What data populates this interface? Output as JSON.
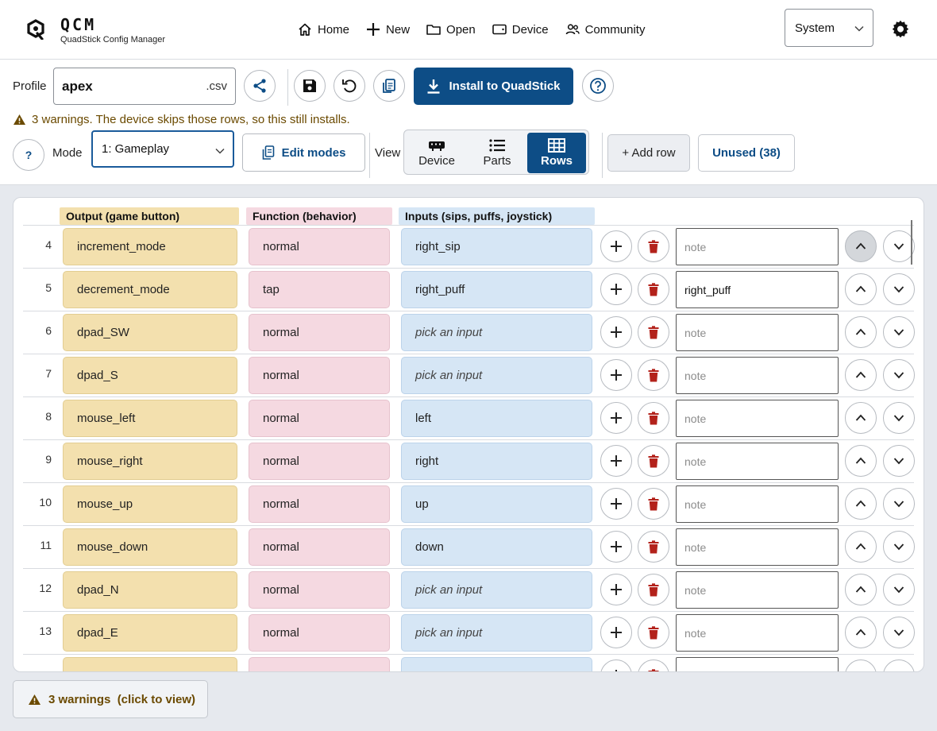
{
  "app": {
    "logo_icon": "quadstick-logo",
    "title": "QCM",
    "subtitle": "QuadStick Config Manager"
  },
  "nav": [
    {
      "label": "Home",
      "icon": "home-icon"
    },
    {
      "label": "New",
      "icon": "plus-icon"
    },
    {
      "label": "Open",
      "icon": "folder-icon"
    },
    {
      "label": "Device",
      "icon": "device-icon"
    },
    {
      "label": "Community",
      "icon": "people-icon"
    }
  ],
  "theme_select": {
    "value": "System"
  },
  "toolbar": {
    "profile_label": "Profile",
    "profile_name": "apex",
    "profile_ext": ".csv",
    "install_label": "Install to QuadStick",
    "warning_text": "3 warnings. The device skips those rows, so this still installs.",
    "help_label": "?",
    "mode_label": "Mode",
    "mode_value": "1: Gameplay",
    "edit_modes_label": "Edit modes",
    "view_label": "View",
    "view_options": [
      {
        "label": "Device",
        "active": false
      },
      {
        "label": "Parts",
        "active": false
      },
      {
        "label": "Rows",
        "active": true
      }
    ],
    "add_row_label": "+ Add row",
    "unused_label": "Unused (38)"
  },
  "table": {
    "headers": {
      "output": "Output (game button)",
      "function": "Function (behavior)",
      "inputs": "Inputs (sips, puffs, joystick)"
    },
    "note_placeholder": "note",
    "rows": [
      {
        "num": "4",
        "output": "increment_mode",
        "function": "normal",
        "input": "right_sip",
        "input_placeholder": false,
        "note": ""
      },
      {
        "num": "5",
        "output": "decrement_mode",
        "function": "tap",
        "input": "right_puff",
        "input_placeholder": false,
        "note": "right_puff"
      },
      {
        "num": "6",
        "output": "dpad_SW",
        "function": "normal",
        "input": "pick an input",
        "input_placeholder": true,
        "note": ""
      },
      {
        "num": "7",
        "output": "dpad_S",
        "function": "normal",
        "input": "pick an input",
        "input_placeholder": true,
        "note": ""
      },
      {
        "num": "8",
        "output": "mouse_left",
        "function": "normal",
        "input": "left",
        "input_placeholder": false,
        "note": ""
      },
      {
        "num": "9",
        "output": "mouse_right",
        "function": "normal",
        "input": "right",
        "input_placeholder": false,
        "note": ""
      },
      {
        "num": "10",
        "output": "mouse_up",
        "function": "normal",
        "input": "up",
        "input_placeholder": false,
        "note": ""
      },
      {
        "num": "11",
        "output": "mouse_down",
        "function": "normal",
        "input": "down",
        "input_placeholder": false,
        "note": ""
      },
      {
        "num": "12",
        "output": "dpad_N",
        "function": "normal",
        "input": "pick an input",
        "input_placeholder": true,
        "note": ""
      },
      {
        "num": "13",
        "output": "dpad_E",
        "function": "normal",
        "input": "pick an input",
        "input_placeholder": true,
        "note": ""
      },
      {
        "num": "",
        "output": "",
        "function": "",
        "input": "",
        "input_placeholder": false,
        "note": ""
      }
    ]
  },
  "warnings_button": {
    "label": "3 warnings  (click to view)"
  },
  "colors": {
    "primary": "#0d4d86",
    "output_bg": "#f3e0ae",
    "function_bg": "#f5d9e1",
    "input_bg": "#d6e6f5",
    "delete_red": "#b3221b",
    "warning": "#6b4a00"
  }
}
